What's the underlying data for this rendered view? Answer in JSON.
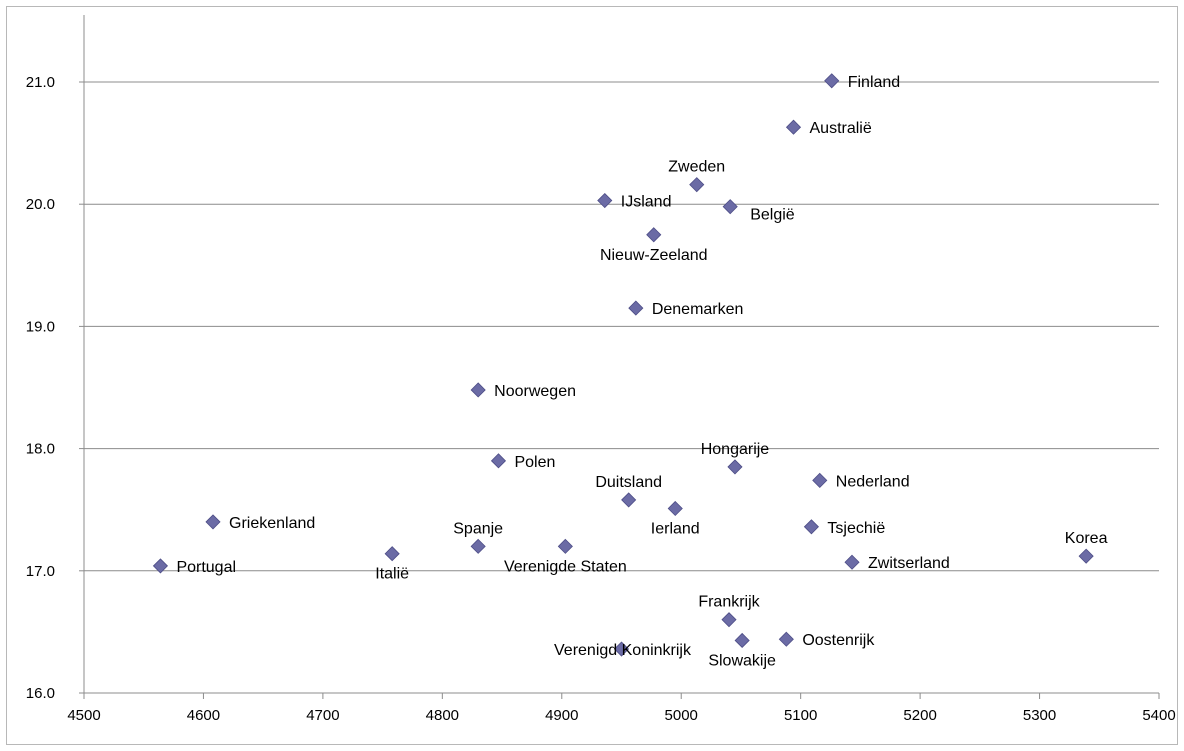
{
  "chart_data": {
    "type": "scatter",
    "title": "",
    "xlabel": "",
    "ylabel": "",
    "xlim": [
      4500,
      5400
    ],
    "ylim": [
      16.0,
      21.5
    ],
    "xticks": [
      "4500",
      "4600",
      "4700",
      "4800",
      "4900",
      "5000",
      "5100",
      "5200",
      "5300",
      "5400"
    ],
    "yticks": [
      "16.0",
      "17.0",
      "18.0",
      "19.0",
      "20.0",
      "21.0"
    ],
    "grid": "horizontal",
    "marker": "diamond",
    "marker_color": "#6b6ba5",
    "points": [
      {
        "label": "Finland",
        "x": 5126,
        "y": 21.01,
        "pos": "right"
      },
      {
        "label": "Australië",
        "x": 5094,
        "y": 20.63,
        "pos": "right"
      },
      {
        "label": "Zweden",
        "x": 5013,
        "y": 20.16,
        "pos": "above"
      },
      {
        "label": "IJsland",
        "x": 4936,
        "y": 20.03,
        "pos": "right"
      },
      {
        "label": "België",
        "x": 5041,
        "y": 19.98,
        "pos": "below-right"
      },
      {
        "label": "Nieuw-Zeeland",
        "x": 4977,
        "y": 19.75,
        "pos": "below"
      },
      {
        "label": "Denemarken",
        "x": 4962,
        "y": 19.15,
        "pos": "right"
      },
      {
        "label": "Noorwegen",
        "x": 4830,
        "y": 18.48,
        "pos": "right"
      },
      {
        "label": "Polen",
        "x": 4847,
        "y": 17.9,
        "pos": "right"
      },
      {
        "label": "Hongarije",
        "x": 5045,
        "y": 17.85,
        "pos": "above"
      },
      {
        "label": "Nederland",
        "x": 5116,
        "y": 17.74,
        "pos": "right"
      },
      {
        "label": "Duitsland",
        "x": 4956,
        "y": 17.58,
        "pos": "above"
      },
      {
        "label": "Ierland",
        "x": 4995,
        "y": 17.51,
        "pos": "below"
      },
      {
        "label": "Griekenland",
        "x": 4608,
        "y": 17.4,
        "pos": "right"
      },
      {
        "label": "Tsjechië",
        "x": 5109,
        "y": 17.36,
        "pos": "right"
      },
      {
        "label": "Spanje",
        "x": 4830,
        "y": 17.2,
        "pos": "above"
      },
      {
        "label": "Verenigde Staten",
        "x": 4903,
        "y": 17.2,
        "pos": "below"
      },
      {
        "label": "Italië",
        "x": 4758,
        "y": 17.14,
        "pos": "below"
      },
      {
        "label": "Korea",
        "x": 5339,
        "y": 17.12,
        "pos": "above"
      },
      {
        "label": "Zwitserland",
        "x": 5143,
        "y": 17.07,
        "pos": "right"
      },
      {
        "label": "Portugal",
        "x": 4564,
        "y": 17.04,
        "pos": "right"
      },
      {
        "label": "Frankrijk",
        "x": 5040,
        "y": 16.6,
        "pos": "above"
      },
      {
        "label": "Oostenrijk",
        "x": 5088,
        "y": 16.44,
        "pos": "right"
      },
      {
        "label": "Slowakije",
        "x": 5051,
        "y": 16.43,
        "pos": "below"
      },
      {
        "label": "Verenigd Koninkrijk",
        "x": 4950,
        "y": 16.36,
        "pos": "center"
      }
    ]
  }
}
